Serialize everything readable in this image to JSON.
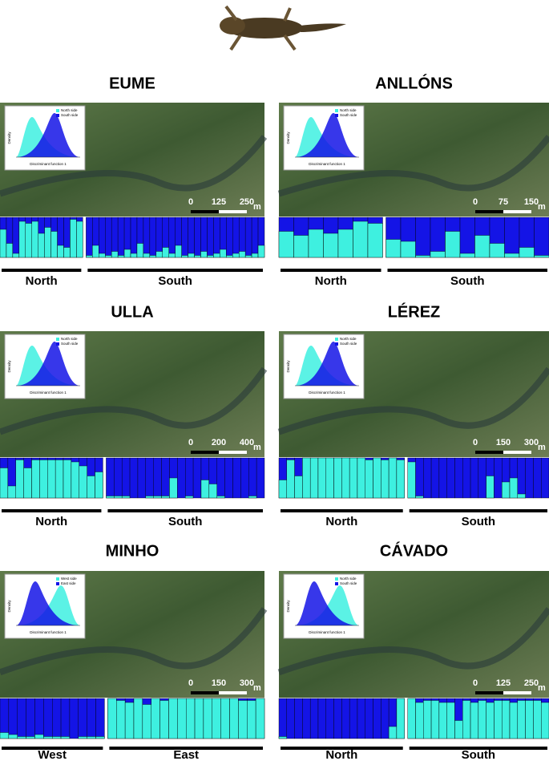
{
  "panels": [
    {
      "title": "EUME",
      "scale": [
        0,
        125,
        250
      ],
      "unit": "m",
      "inset": {
        "legend": [
          "North side",
          "South side"
        ],
        "xlabel": "Discriminant function 1",
        "ylabel": "Density"
      },
      "groups": [
        {
          "label": "North",
          "cyan": [
            0.7,
            0.35,
            0.1,
            0.9,
            0.85,
            0.9,
            0.6,
            0.75,
            0.65,
            0.3,
            0.25,
            0.95,
            0.9
          ]
        },
        {
          "label": "South",
          "cyan": [
            0.05,
            0.3,
            0.1,
            0.05,
            0.15,
            0.05,
            0.2,
            0.1,
            0.35,
            0.1,
            0.05,
            0.15,
            0.25,
            0.1,
            0.3,
            0.05,
            0.1,
            0.05,
            0.15,
            0.05,
            0.1,
            0.2,
            0.05,
            0.1,
            0.15,
            0.05,
            0.1,
            0.3
          ]
        }
      ]
    },
    {
      "title": "ANLLÓNS",
      "scale": [
        0,
        75,
        150
      ],
      "unit": "m",
      "inset": {
        "legend": [
          "North side",
          "South side"
        ],
        "xlabel": "Discriminant function 1",
        "ylabel": "Density"
      },
      "groups": [
        {
          "label": "North",
          "cyan": [
            0.65,
            0.55,
            0.7,
            0.6,
            0.7,
            0.9,
            0.85
          ]
        },
        {
          "label": "South",
          "cyan": [
            0.45,
            0.4,
            0.05,
            0.15,
            0.65,
            0.1,
            0.55,
            0.35,
            0.1,
            0.25,
            0.05
          ]
        }
      ]
    },
    {
      "title": "ULLA",
      "scale": [
        0,
        200,
        400
      ],
      "unit": "m",
      "inset": {
        "legend": [
          "North side",
          "South side"
        ],
        "xlabel": "Discriminant function 1",
        "ylabel": "Density"
      },
      "groups": [
        {
          "label": "North",
          "cyan": [
            0.75,
            0.3,
            0.95,
            0.75,
            0.95,
            0.95,
            0.95,
            0.95,
            0.95,
            0.9,
            0.8,
            0.55,
            0.65
          ]
        },
        {
          "label": "South",
          "cyan": [
            0.05,
            0.05,
            0.05,
            0,
            0,
            0.05,
            0.05,
            0.05,
            0.5,
            0,
            0.05,
            0,
            0.45,
            0.35,
            0.05,
            0,
            0,
            0,
            0.05,
            0
          ]
        }
      ]
    },
    {
      "title": "LÉREZ",
      "scale": [
        0,
        150,
        300
      ],
      "unit": "m",
      "inset": {
        "legend": [
          "North side",
          "South side"
        ],
        "xlabel": "Discriminant function 1",
        "ylabel": "Density"
      },
      "groups": [
        {
          "label": "North",
          "cyan": [
            0.45,
            0.95,
            0.55,
            1,
            1,
            1,
            1,
            1,
            1,
            1,
            1,
            0.95,
            1,
            0.95,
            1,
            0.95
          ]
        },
        {
          "label": "South",
          "cyan": [
            0.9,
            0.05,
            0,
            0,
            0,
            0,
            0,
            0,
            0,
            0,
            0.55,
            0,
            0.4,
            0.5,
            0.1,
            0,
            0,
            0
          ]
        }
      ]
    },
    {
      "title": "MINHO",
      "scale": [
        0,
        150,
        300
      ],
      "unit": "m",
      "inset": {
        "legend": [
          "West side",
          "East side"
        ],
        "xlabel": "Discriminant function 1",
        "ylabel": "Density"
      },
      "groups": [
        {
          "label": "West",
          "cyan": [
            0.15,
            0.1,
            0.05,
            0.05,
            0.1,
            0.05,
            0.05,
            0.05,
            0,
            0.05,
            0.05,
            0.05
          ]
        },
        {
          "label": "East",
          "cyan": [
            1,
            0.95,
            0.9,
            1,
            0.85,
            1,
            0.95,
            1,
            1,
            1,
            1,
            1,
            1,
            1,
            1,
            0.95,
            0.95,
            1
          ]
        }
      ]
    },
    {
      "title": "CÁVADO",
      "scale": [
        0,
        125,
        250
      ],
      "unit": "m",
      "inset": {
        "legend": [
          "North side",
          "South side"
        ],
        "xlabel": "Discriminant function 1",
        "ylabel": "Density"
      },
      "groups": [
        {
          "label": "North",
          "cyan": [
            0.05,
            0,
            0,
            0,
            0,
            0,
            0,
            0,
            0,
            0,
            0,
            0,
            0,
            0,
            0.3,
            1
          ]
        },
        {
          "label": "South",
          "cyan": [
            1,
            0.9,
            0.95,
            0.95,
            0.9,
            0.9,
            0.45,
            0.95,
            0.9,
            0.95,
            0.9,
            0.95,
            0.95,
            0.9,
            0.95,
            0.95,
            0.95,
            0.9
          ]
        }
      ]
    }
  ]
}
